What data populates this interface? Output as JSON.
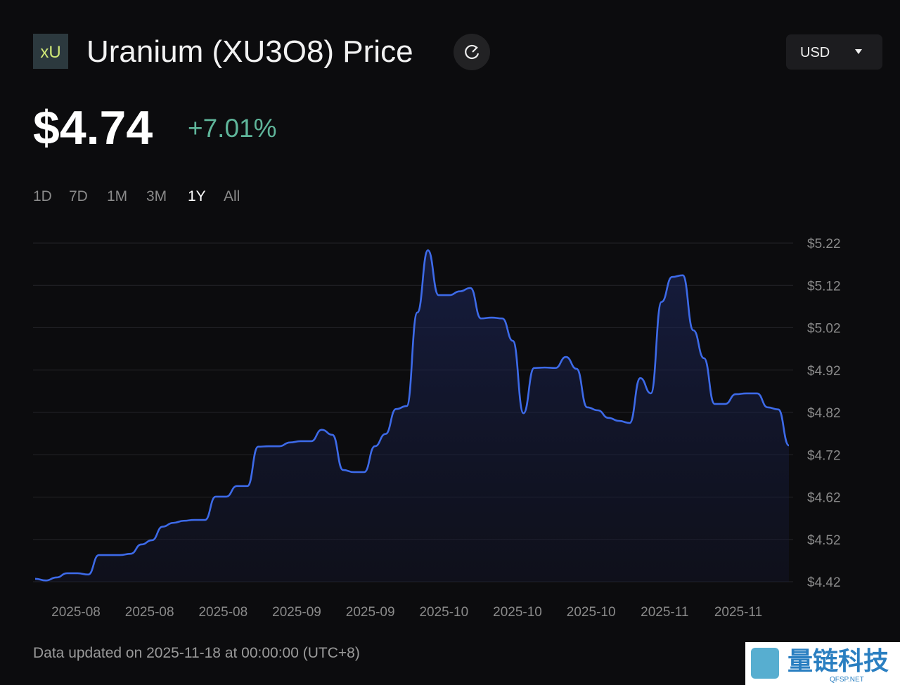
{
  "header": {
    "logo": "xU",
    "title": "Uranium (XU3O8) Price",
    "currency": "USD",
    "price": "$4.74",
    "change": "+7.01%"
  },
  "ranges": {
    "items": [
      "1D",
      "7D",
      "1M",
      "3M",
      "1Y",
      "All"
    ],
    "selected": "1Y"
  },
  "chart_data": {
    "type": "line",
    "color": "#3d6ae8",
    "grid": true,
    "values": [
      4.427,
      4.423,
      4.43,
      4.44,
      4.44,
      4.437,
      4.483,
      4.483,
      4.483,
      4.486,
      4.508,
      4.518,
      4.55,
      4.559,
      4.564,
      4.566,
      4.566,
      4.621,
      4.621,
      4.646,
      4.646,
      4.739,
      4.74,
      4.74,
      4.749,
      4.752,
      4.752,
      4.779,
      4.767,
      4.684,
      4.679,
      4.679,
      4.74,
      4.769,
      4.828,
      4.835,
      5.056,
      5.203,
      5.097,
      5.097,
      5.106,
      5.114,
      5.042,
      5.044,
      5.042,
      4.989,
      4.818,
      4.925,
      4.926,
      4.925,
      4.951,
      4.923,
      4.832,
      4.825,
      4.807,
      4.8,
      4.795,
      4.901,
      4.865,
      5.081,
      5.14,
      5.144,
      5.014,
      4.948,
      4.84,
      4.84,
      4.863,
      4.865,
      4.865,
      4.832,
      4.827,
      4.742
    ],
    "xtick_labels": [
      "2025-08",
      "2025-08",
      "2025-08",
      "2025-09",
      "2025-09",
      "2025-10",
      "2025-10",
      "2025-10",
      "2025-11",
      "2025-11"
    ],
    "ylim": [
      4.42,
      5.22
    ],
    "yticks": [
      {
        "value": 5.22,
        "label": "$5.22"
      },
      {
        "value": 5.12,
        "label": "$5.12"
      },
      {
        "value": 5.02,
        "label": "$5.02"
      },
      {
        "value": 4.92,
        "label": "$4.92"
      },
      {
        "value": 4.82,
        "label": "$4.82"
      },
      {
        "value": 4.72,
        "label": "$4.72"
      },
      {
        "value": 4.62,
        "label": "$4.62"
      },
      {
        "value": 4.52,
        "label": "$4.52"
      },
      {
        "value": 4.42,
        "label": "$4.42"
      }
    ]
  },
  "footer": "Data updated on 2025-11-18 at 00:00:00 (UTC+8)",
  "watermark": {
    "name": "量链科技",
    "domain": "QFSP.NET"
  }
}
